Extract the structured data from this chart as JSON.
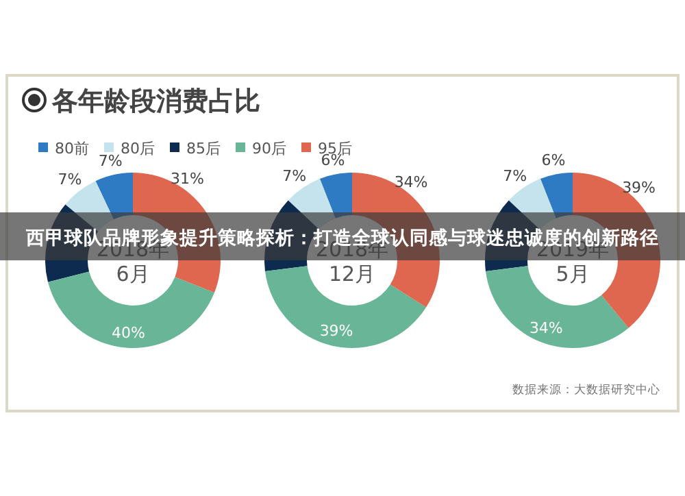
{
  "chart_data": [
    {
      "type": "donut",
      "title": "各年龄段消费占比",
      "subtitle": "2018年\n6月",
      "categories": [
        "80前",
        "80后",
        "85后",
        "90后",
        "95后"
      ],
      "values": [
        7,
        7,
        15,
        40,
        31
      ],
      "value_labels": [
        "7%",
        "7%",
        null,
        "40%",
        "31%"
      ],
      "colors": [
        "#2e7bc4",
        "#c5e3ec",
        "#0d2a4f",
        "#68b597",
        "#e0674f"
      ],
      "legend": "top right",
      "annotations": [
        "西甲球队品牌形象提升策略探析：打造全球认同感与球迷忠诚度的创新路径",
        "数据来源：大数据研究中心"
      ]
    },
    {
      "type": "donut",
      "subtitle": "2018年\n12月",
      "categories": [
        null,
        null,
        null,
        null,
        null
      ],
      "values": [
        6,
        7,
        14,
        39,
        34
      ],
      "value_labels": [
        "6%",
        "7%",
        null,
        "39%",
        "34%"
      ],
      "colors": [
        "#2e7bc4",
        "#c5e3ec",
        "#0d2a4f",
        "#68b597",
        "#e0674f"
      ]
    },
    {
      "type": "donut",
      "subtitle": "2019年\n5月",
      "categories": [
        null,
        null,
        null,
        null,
        null
      ],
      "values": [
        6,
        7,
        14,
        34,
        39
      ],
      "value_labels": [
        "6%",
        "7%",
        null,
        "34%",
        "39%"
      ],
      "colors": [
        "#2e7bc4",
        "#c5e3ec",
        "#0d2a4f",
        "#68b597",
        "#e0674f"
      ]
    }
  ]
}
